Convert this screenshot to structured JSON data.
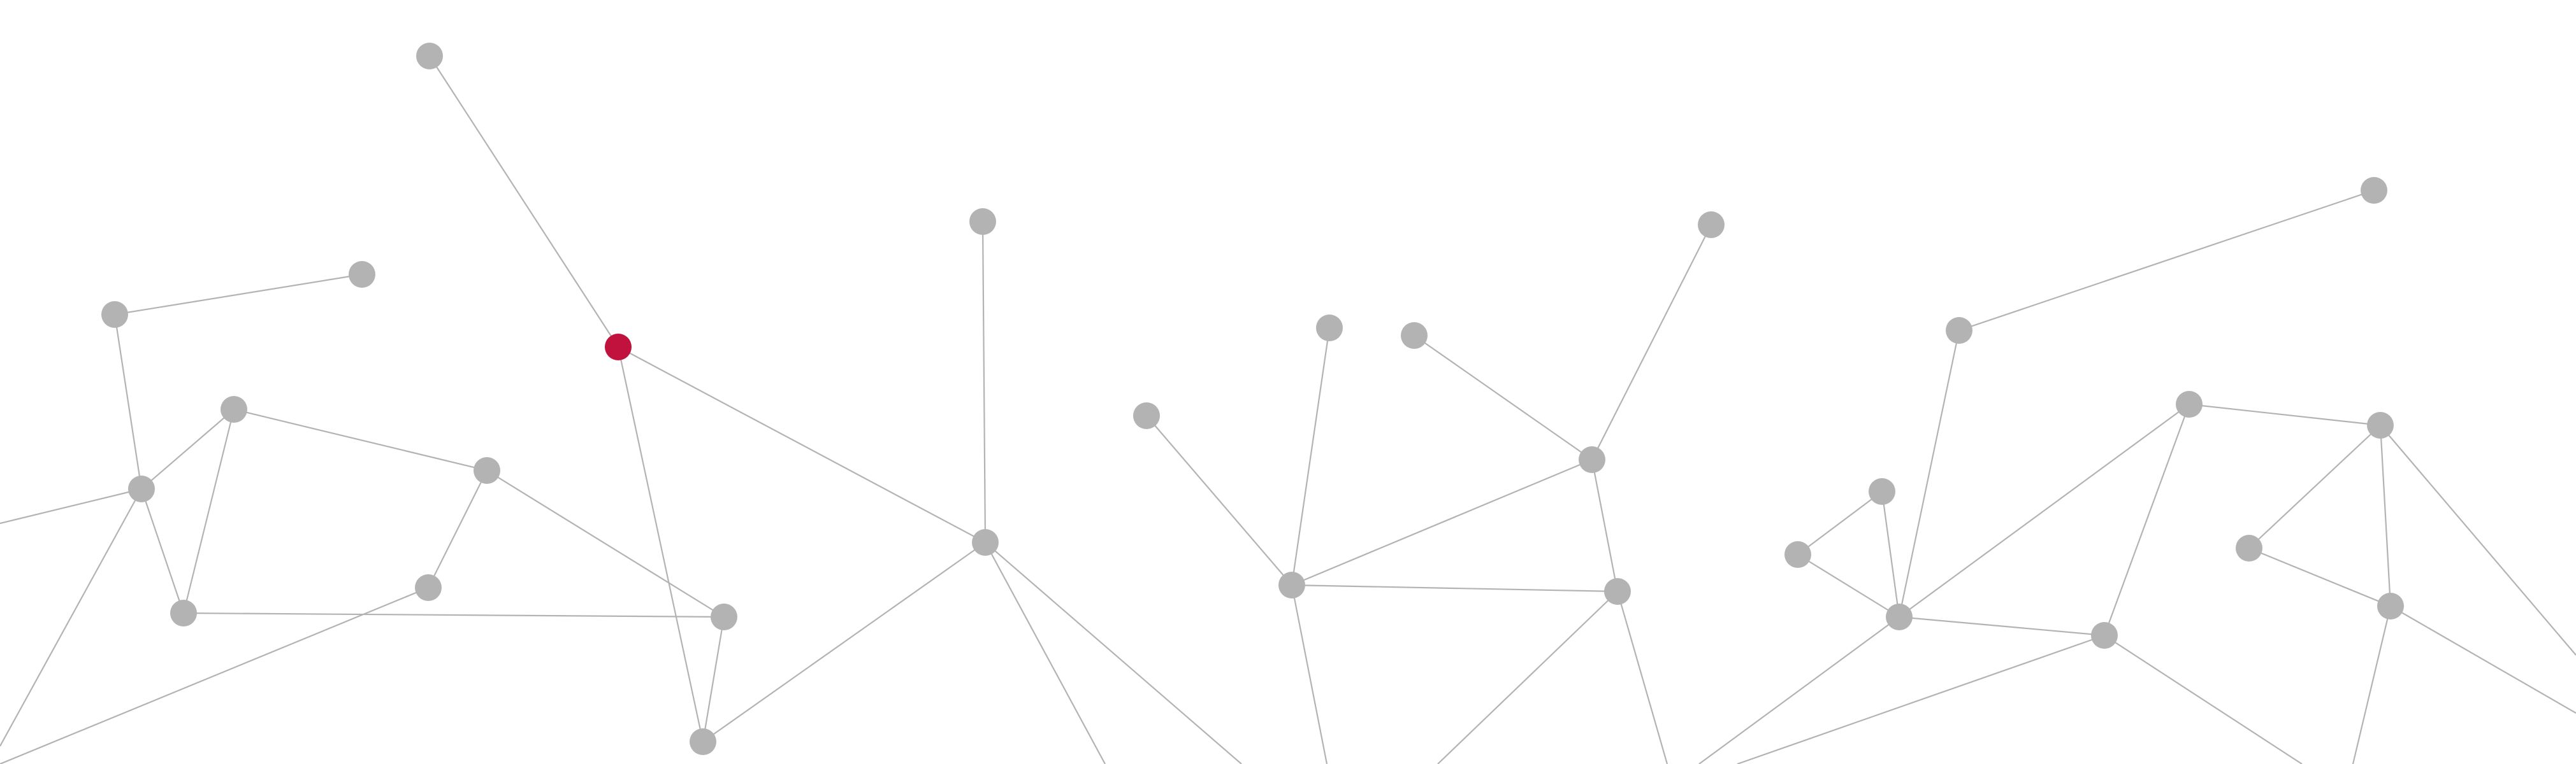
{
  "colors": {
    "background": "#ffffff",
    "edge": "#b3b3b3",
    "node": "#b3b3b3",
    "highlight_node": "#c0123c"
  },
  "graph": {
    "highlighted_node": "n_red"
  }
}
